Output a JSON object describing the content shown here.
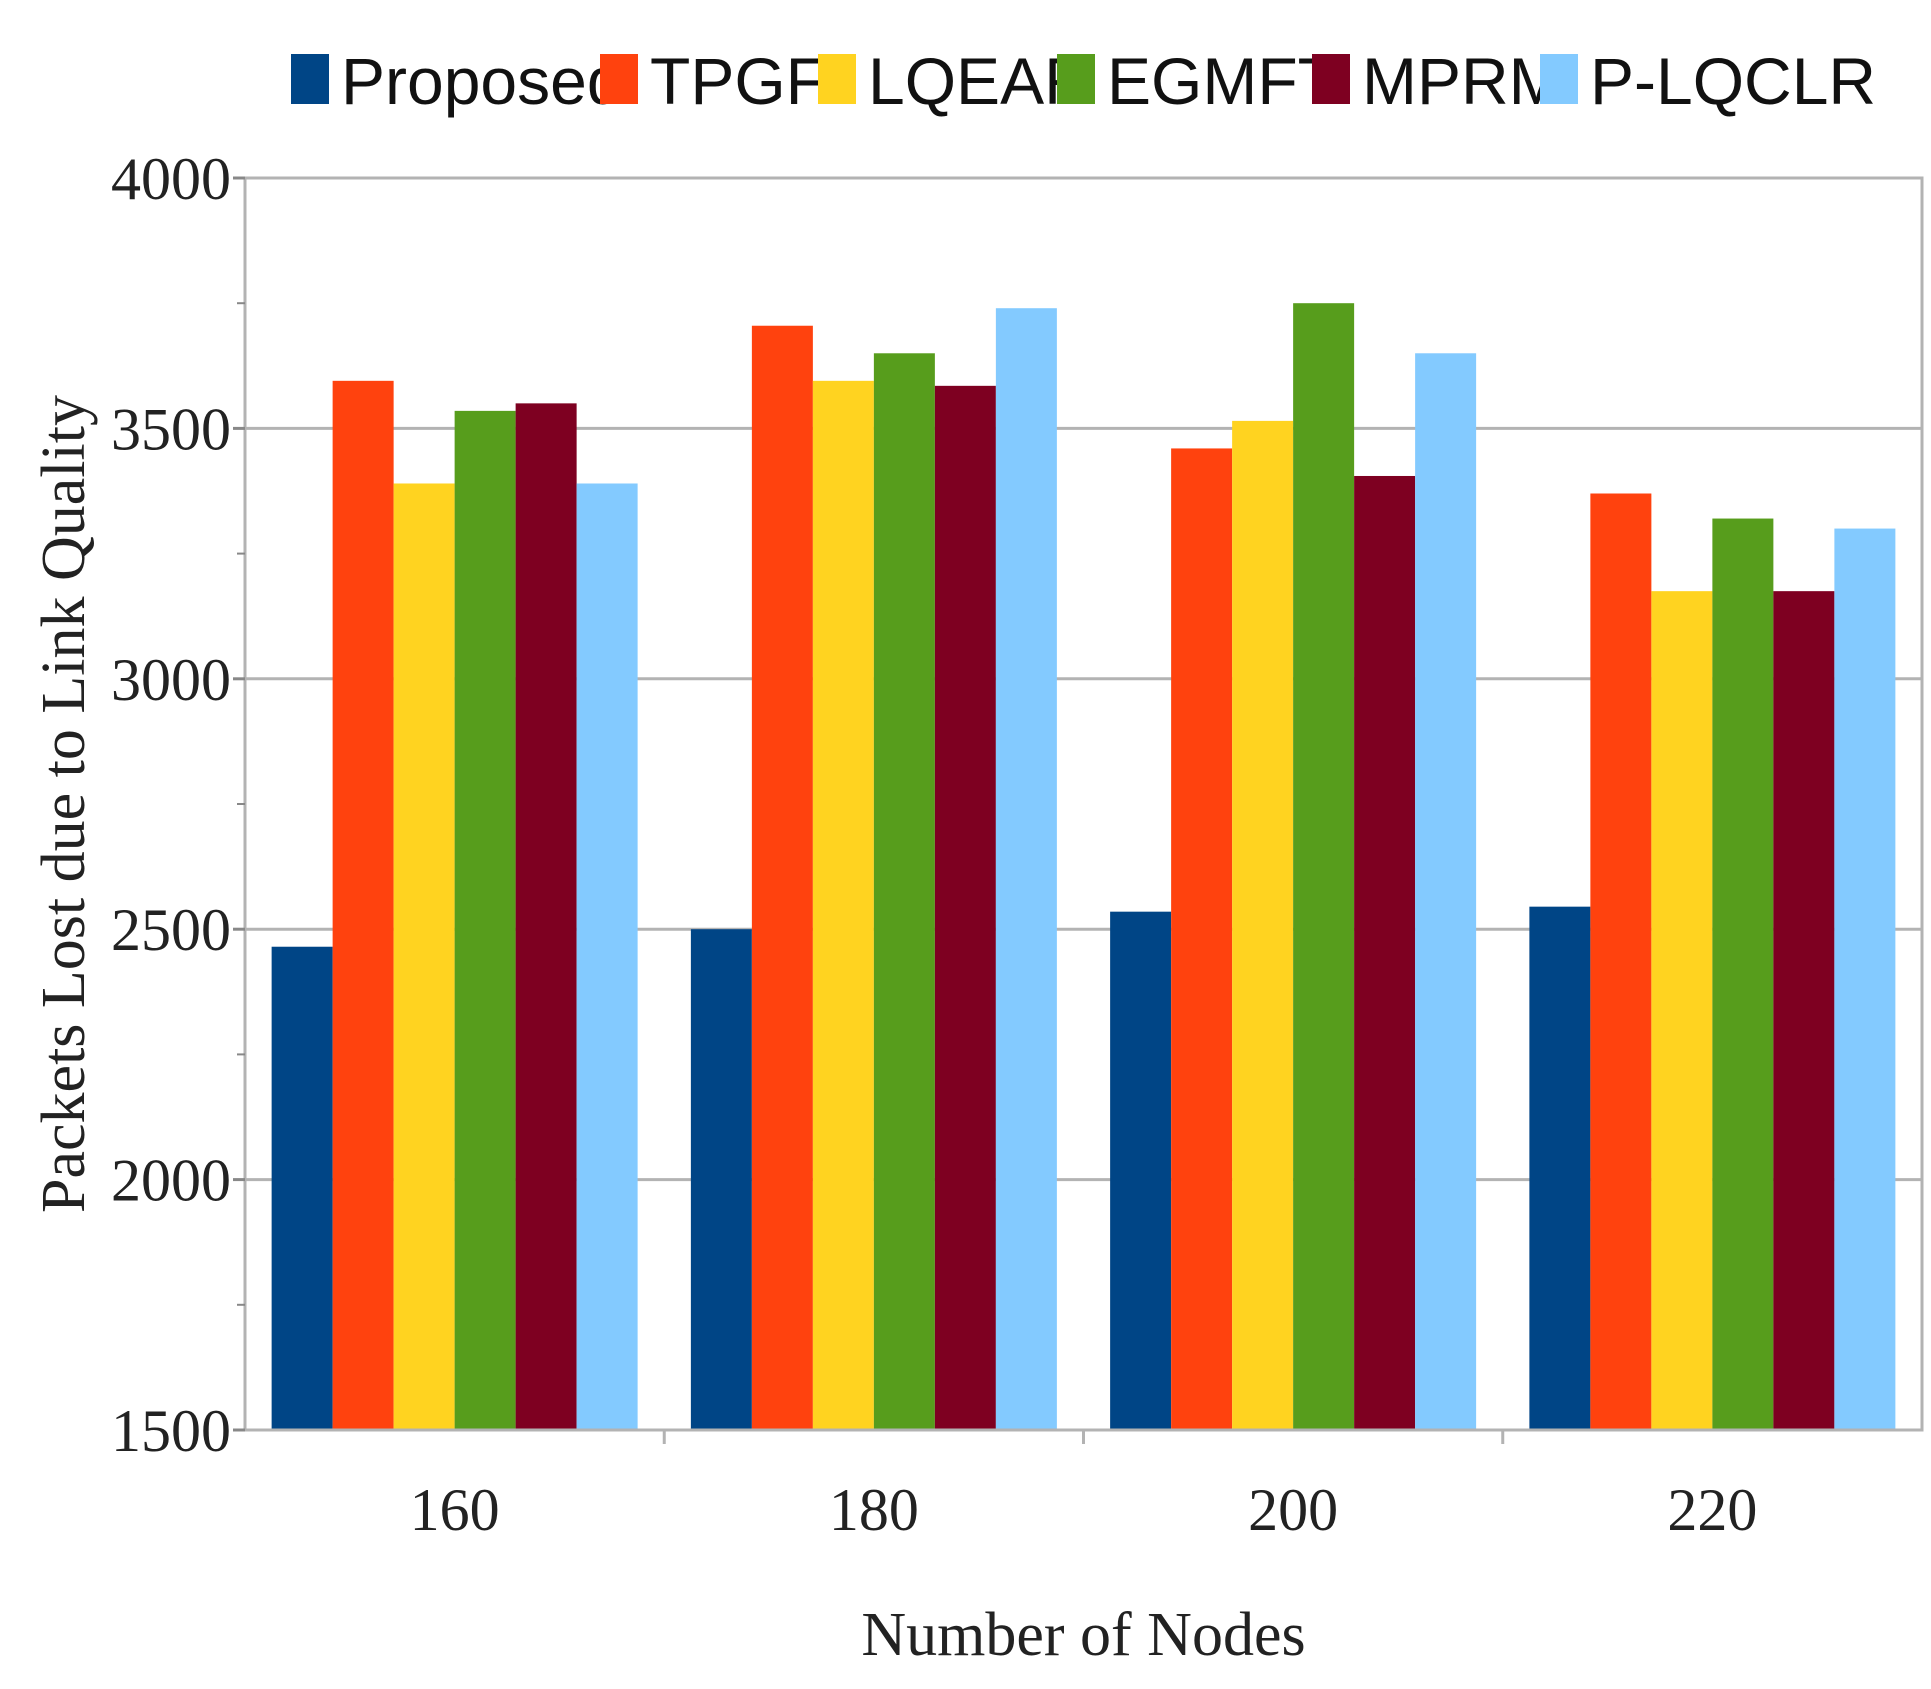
{
  "chart_data": {
    "type": "bar",
    "title": "",
    "xlabel": "Number of Nodes",
    "ylabel": "Packets Lost due to Link Quality",
    "categories": [
      "160",
      "180",
      "200",
      "220"
    ],
    "ylim": [
      1500,
      4000
    ],
    "yticks": [
      1500,
      2000,
      2500,
      3000,
      3500,
      4000
    ],
    "ytick_labels": [
      "1500",
      "2000",
      "2500",
      "3000",
      "3500",
      "4000"
    ],
    "minor_ticks": [
      1750,
      2250,
      2750,
      3250,
      3750
    ],
    "grid": true,
    "legend_position": "top",
    "series": [
      {
        "name": "Proposed",
        "color": "#004586",
        "values": [
          2465,
          2500,
          2535,
          2545
        ]
      },
      {
        "name": "TPGF",
        "color": "#ff420e",
        "values": [
          3595,
          3705,
          3460,
          3370
        ]
      },
      {
        "name": "LQEAR",
        "color": "#ffd320",
        "values": [
          3390,
          3595,
          3515,
          3175
        ]
      },
      {
        "name": "EGMFT",
        "color": "#579d1c",
        "values": [
          3535,
          3650,
          3750,
          3320
        ]
      },
      {
        "name": "MPRM",
        "color": "#7e0021",
        "values": [
          3550,
          3585,
          3405,
          3175
        ]
      },
      {
        "name": "P-LQCLR",
        "color": "#83caff",
        "values": [
          3390,
          3740,
          3650,
          3300
        ]
      }
    ]
  }
}
